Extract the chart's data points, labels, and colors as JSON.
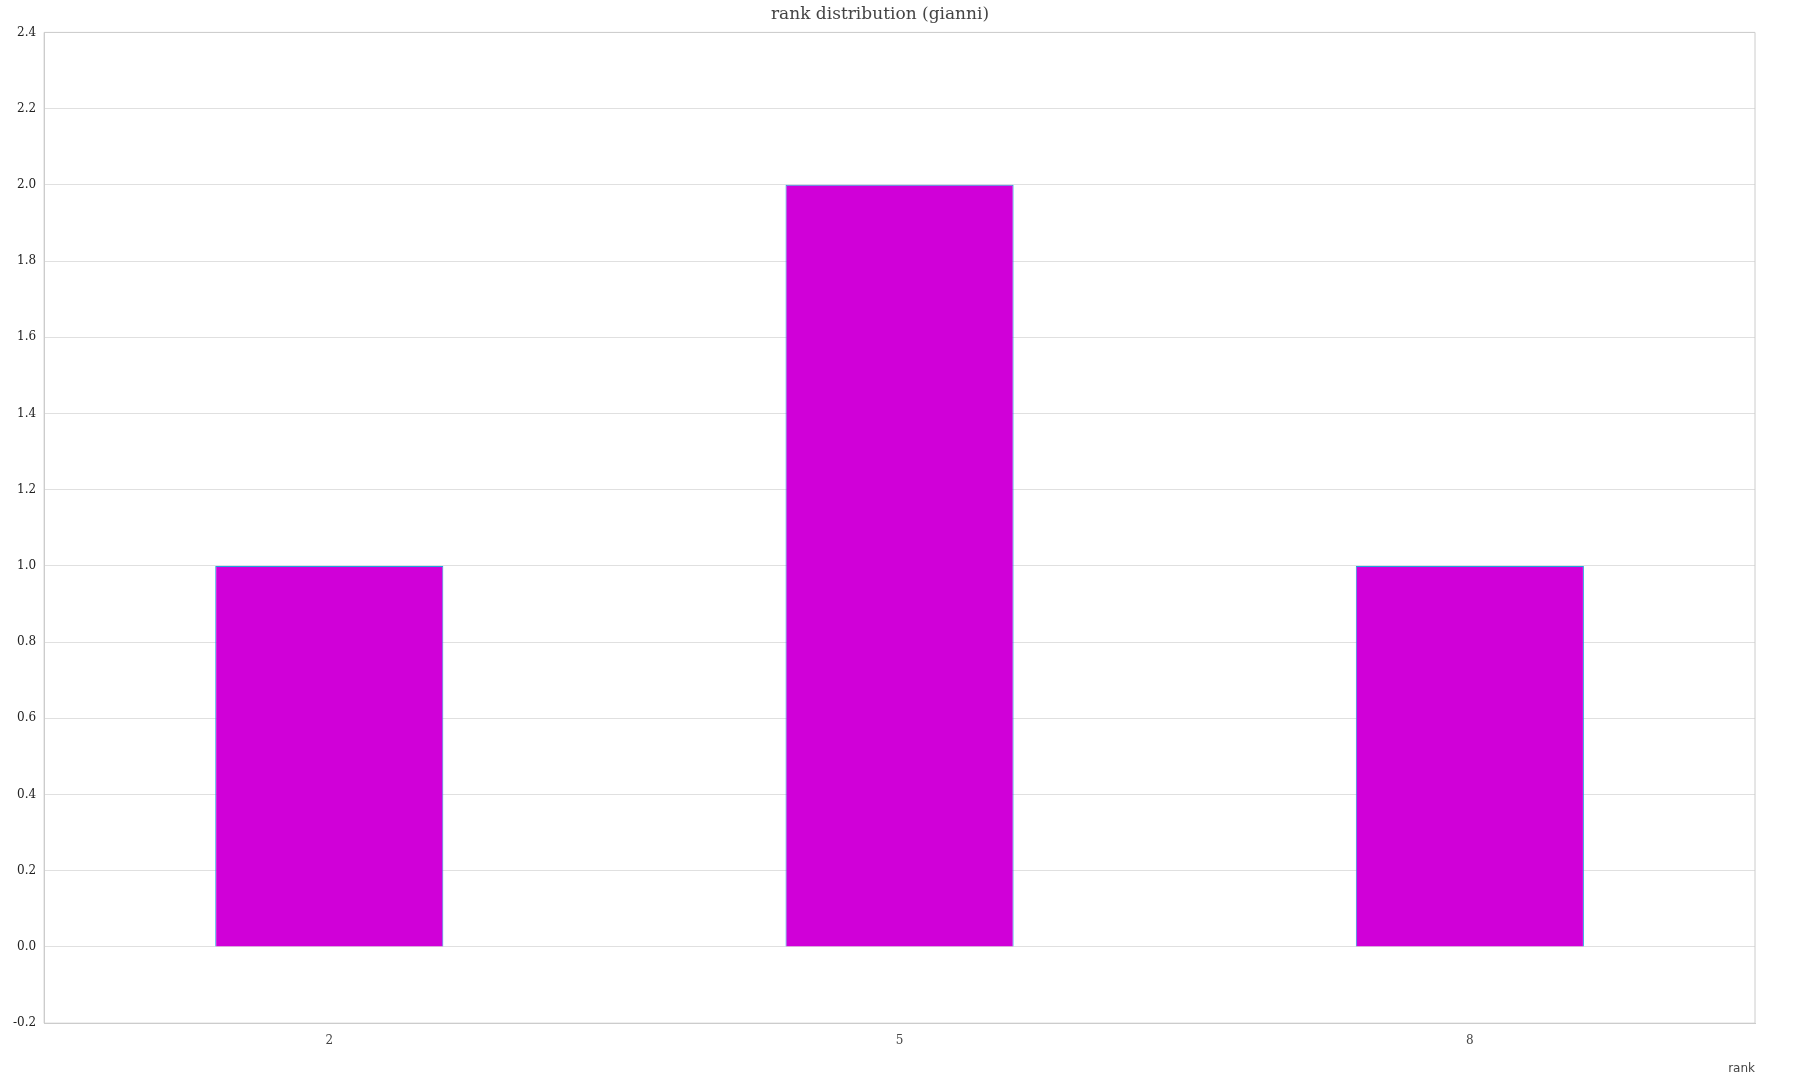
{
  "chart_data": {
    "type": "bar",
    "title": "rank distribution (gianni)",
    "xlabel": "rank",
    "categories": [
      "2",
      "5",
      "8"
    ],
    "values": [
      1,
      2,
      1
    ],
    "color": "#d000d8",
    "ylim": [
      -0.2,
      2.4
    ],
    "yticks": [
      {
        "value": -0.2,
        "label": "-0.2"
      },
      {
        "value": 0,
        "label": "0.0"
      },
      {
        "value": 0.2,
        "label": "0.2"
      },
      {
        "value": 0.4,
        "label": "0.4"
      },
      {
        "value": 0.6,
        "label": "0.6"
      },
      {
        "value": 0.8,
        "label": "0.8"
      },
      {
        "value": 1,
        "label": "1.0"
      },
      {
        "value": 1.2,
        "label": "1.2"
      },
      {
        "value": 1.4,
        "label": "1.4"
      },
      {
        "value": 1.6,
        "label": "1.6"
      },
      {
        "value": 1.8,
        "label": "1.8"
      },
      {
        "value": 2,
        "label": "2.0"
      },
      {
        "value": 2.2,
        "label": "2.2"
      },
      {
        "value": 2.4,
        "label": "2.4"
      }
    ],
    "grid": "y",
    "legend": false
  }
}
